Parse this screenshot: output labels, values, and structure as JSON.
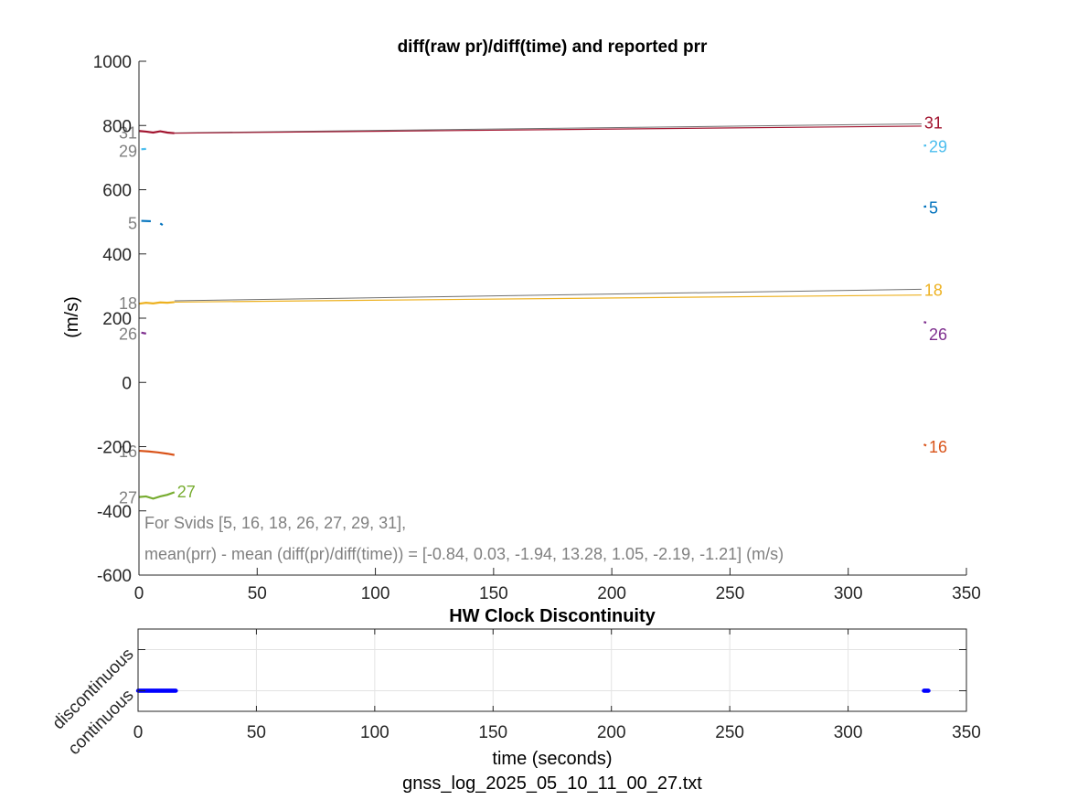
{
  "chart_data": [
    {
      "type": "line",
      "title": "diff(raw pr)/diff(time) and reported prr",
      "xlabel": "",
      "ylabel": "(m/s)",
      "xlim": [
        0,
        350
      ],
      "ylim": [
        -600,
        1000
      ],
      "x_ticks": [
        "0",
        "50",
        "100",
        "150",
        "200",
        "250",
        "300",
        "350"
      ],
      "y_ticks": [
        "-600",
        "-400",
        "-200",
        "0",
        "200",
        "400",
        "600",
        "800",
        "1000"
      ],
      "grid": false,
      "annotations": [
        "For Svids [5, 16, 18, 26, 27, 29, 31],",
        "mean(prr) - mean (diff(pr)/diff(time)) = [-0.84, 0.03, -1.94, 13.28, 1.05, -2.19, -1.21] (m/s)"
      ],
      "series": [
        {
          "name": "31",
          "color": "#a2142f",
          "start_label_y": 780,
          "end_label_y": 810,
          "segments": [
            [
              [
                0,
                783
              ],
              [
                3,
                781
              ],
              [
                6,
                778
              ],
              [
                9,
                782
              ],
              [
                12,
                778
              ],
              [
                15,
                776
              ]
            ],
            [
              [
                15,
                776
              ],
              [
                331,
                798
              ]
            ]
          ],
          "ref_line": [
            [
              15,
              777
            ],
            [
              331,
              805
            ]
          ]
        },
        {
          "name": "29",
          "color": "#4dbeee",
          "start_label_y": 722,
          "end_label_y": 736,
          "segments": [
            [
              [
                1,
                726
              ],
              [
                3,
                727
              ]
            ],
            [
              [
                332,
                737
              ],
              [
                333,
                738
              ]
            ]
          ]
        },
        {
          "name": "5",
          "color": "#0072bd",
          "start_label_y": 497,
          "end_label_y": 546,
          "segments": [
            [
              [
                1,
                503
              ],
              [
                5,
                502
              ]
            ],
            [
              [
                9,
                495
              ],
              [
                10,
                490
              ]
            ],
            [
              [
                332,
                547
              ],
              [
                333,
                548
              ]
            ]
          ]
        },
        {
          "name": "18",
          "color": "#edb120",
          "start_label_y": 248,
          "end_label_y": 290,
          "segments": [
            [
              [
                0,
                245
              ],
              [
                3,
                248
              ],
              [
                6,
                246
              ],
              [
                9,
                249
              ],
              [
                12,
                248
              ],
              [
                15,
                250
              ]
            ],
            [
              [
                15,
                250
              ],
              [
                331,
                272
              ]
            ]
          ],
          "ref_line": [
            [
              15,
              254
            ],
            [
              331,
              290
            ]
          ]
        },
        {
          "name": "26",
          "color": "#7e2f8e",
          "start_label_y": 153,
          "end_label_y": 152,
          "segments": [
            [
              [
                1,
                155
              ],
              [
                3,
                152
              ]
            ],
            [
              [
                332,
                188
              ],
              [
                333,
                186
              ]
            ]
          ]
        },
        {
          "name": "16",
          "color": "#d95319",
          "start_label_y": -213,
          "end_label_y": -198,
          "segments": [
            [
              [
                0,
                -213
              ],
              [
                4,
                -215
              ],
              [
                8,
                -218
              ],
              [
                12,
                -222
              ],
              [
                15,
                -226
              ]
            ],
            [
              [
                332,
                -193
              ],
              [
                333,
                -197
              ]
            ]
          ]
        },
        {
          "name": "27",
          "color": "#77ac30",
          "start_label_y": -357,
          "end_label_y": -338,
          "segments": [
            [
              [
                0,
                -357
              ],
              [
                3,
                -355
              ],
              [
                6,
                -362
              ],
              [
                9,
                -355
              ],
              [
                12,
                -350
              ],
              [
                15,
                -342
              ]
            ]
          ]
        }
      ]
    },
    {
      "type": "scatter",
      "title": "HW Clock Discontinuity",
      "xlabel": "time (seconds)",
      "ylabel": "",
      "xlim": [
        0,
        350
      ],
      "ylim": [
        -0.5,
        1.5
      ],
      "x_ticks": [
        "0",
        "50",
        "100",
        "150",
        "200",
        "250",
        "300",
        "350"
      ],
      "y_tick_labels": [
        "continuous",
        "discontinuous"
      ],
      "y_tick_values": [
        0,
        1
      ],
      "grid": true,
      "series": [
        {
          "color": "#0000ff",
          "x_ranges": [
            [
              0,
              16
            ],
            [
              332,
              334
            ]
          ],
          "y": 0
        }
      ]
    }
  ],
  "footer": "gnss_log_2025_05_10_11_00_27.txt"
}
